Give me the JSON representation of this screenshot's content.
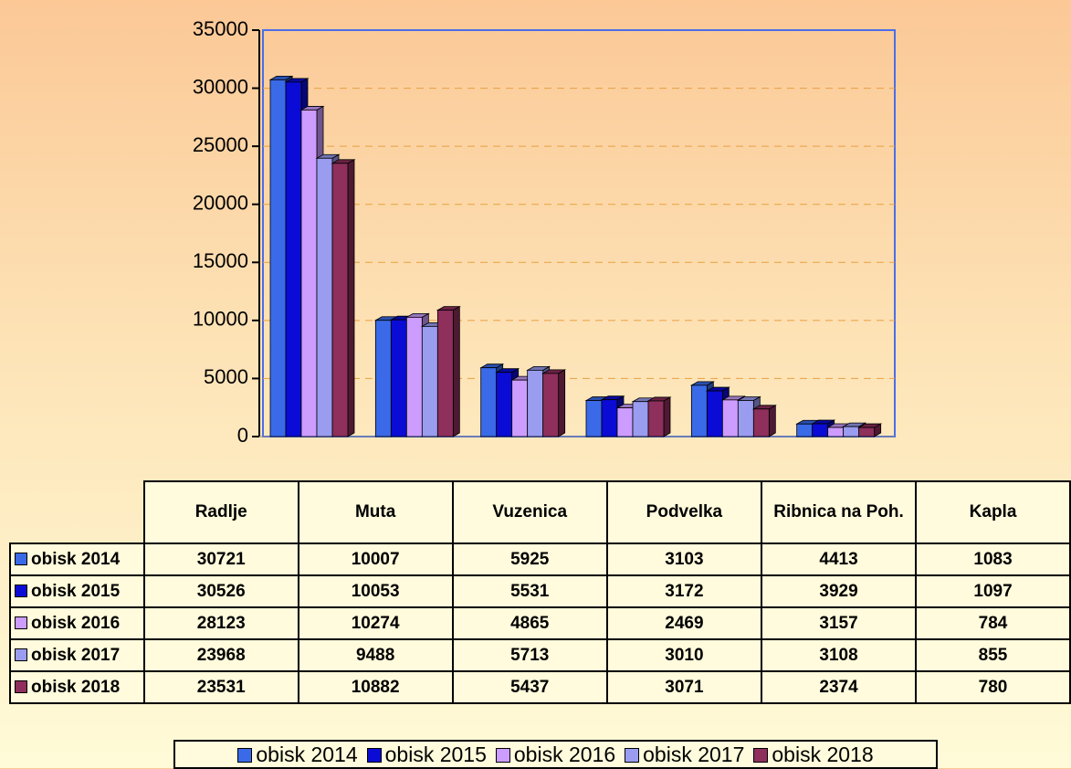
{
  "chart_data": {
    "type": "bar",
    "categories": [
      "Radlje",
      "Muta",
      "Vuzenica",
      "Podvelka",
      "Ribnica na Poh.",
      "Kapla"
    ],
    "series": [
      {
        "name": "obisk 2014",
        "color": "#3a6ae8",
        "values": [
          30721,
          10007,
          5925,
          3103,
          4413,
          1083
        ]
      },
      {
        "name": "obisk 2015",
        "color": "#0b0bd6",
        "values": [
          30526,
          10053,
          5531,
          3172,
          3929,
          1097
        ]
      },
      {
        "name": "obisk 2016",
        "color": "#cc9cff",
        "values": [
          28123,
          10274,
          4865,
          2469,
          3157,
          784
        ]
      },
      {
        "name": "obisk 2017",
        "color": "#9a9cf0",
        "values": [
          23968,
          9488,
          5713,
          3010,
          3108,
          855
        ]
      },
      {
        "name": "obisk 2018",
        "color": "#8e2f5c",
        "values": [
          23531,
          10882,
          5437,
          3071,
          2374,
          780
        ]
      }
    ],
    "ylim": [
      0,
      35000
    ],
    "yticks": [
      0,
      5000,
      10000,
      15000,
      20000,
      25000,
      30000,
      35000
    ],
    "grid": true,
    "legend": "bottom"
  }
}
